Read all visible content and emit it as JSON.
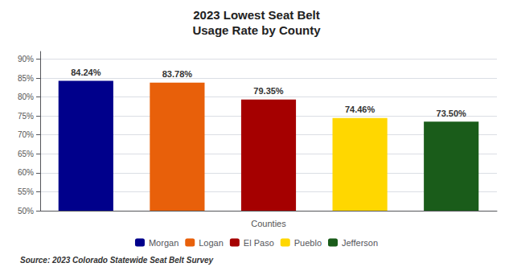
{
  "chart_data": {
    "type": "bar",
    "title": "2023 Lowest Seat Belt\nUsage Rate by County",
    "categories": [
      "Morgan",
      "Logan",
      "El Paso",
      "Pueblo",
      "Jefferson"
    ],
    "values": [
      84.24,
      83.78,
      79.35,
      74.46,
      73.5
    ],
    "value_labels": [
      "84.24%",
      "83.78%",
      "79.35%",
      "74.46%",
      "73.50%"
    ],
    "colors": [
      "#00008B",
      "#E8600A",
      "#A50000",
      "#FFD700",
      "#1A5C1A"
    ],
    "xlabel": "Counties",
    "ylim": [
      50,
      92
    ],
    "yticks": [
      {
        "value": 50,
        "label": "50%"
      },
      {
        "value": 55,
        "label": "55%"
      },
      {
        "value": 60,
        "label": "60%"
      },
      {
        "value": 65,
        "label": "65%"
      },
      {
        "value": 70,
        "label": "70%"
      },
      {
        "value": 75,
        "label": "75%"
      },
      {
        "value": 80,
        "label": "80%"
      },
      {
        "value": 85,
        "label": "85%"
      },
      {
        "value": 90,
        "label": "90%"
      }
    ],
    "grid": true,
    "data_labels": true,
    "tick_labels": "y",
    "legend": "bottom",
    "source": "Source: 2023 Colorado Statewide Seat Belt Survey"
  }
}
